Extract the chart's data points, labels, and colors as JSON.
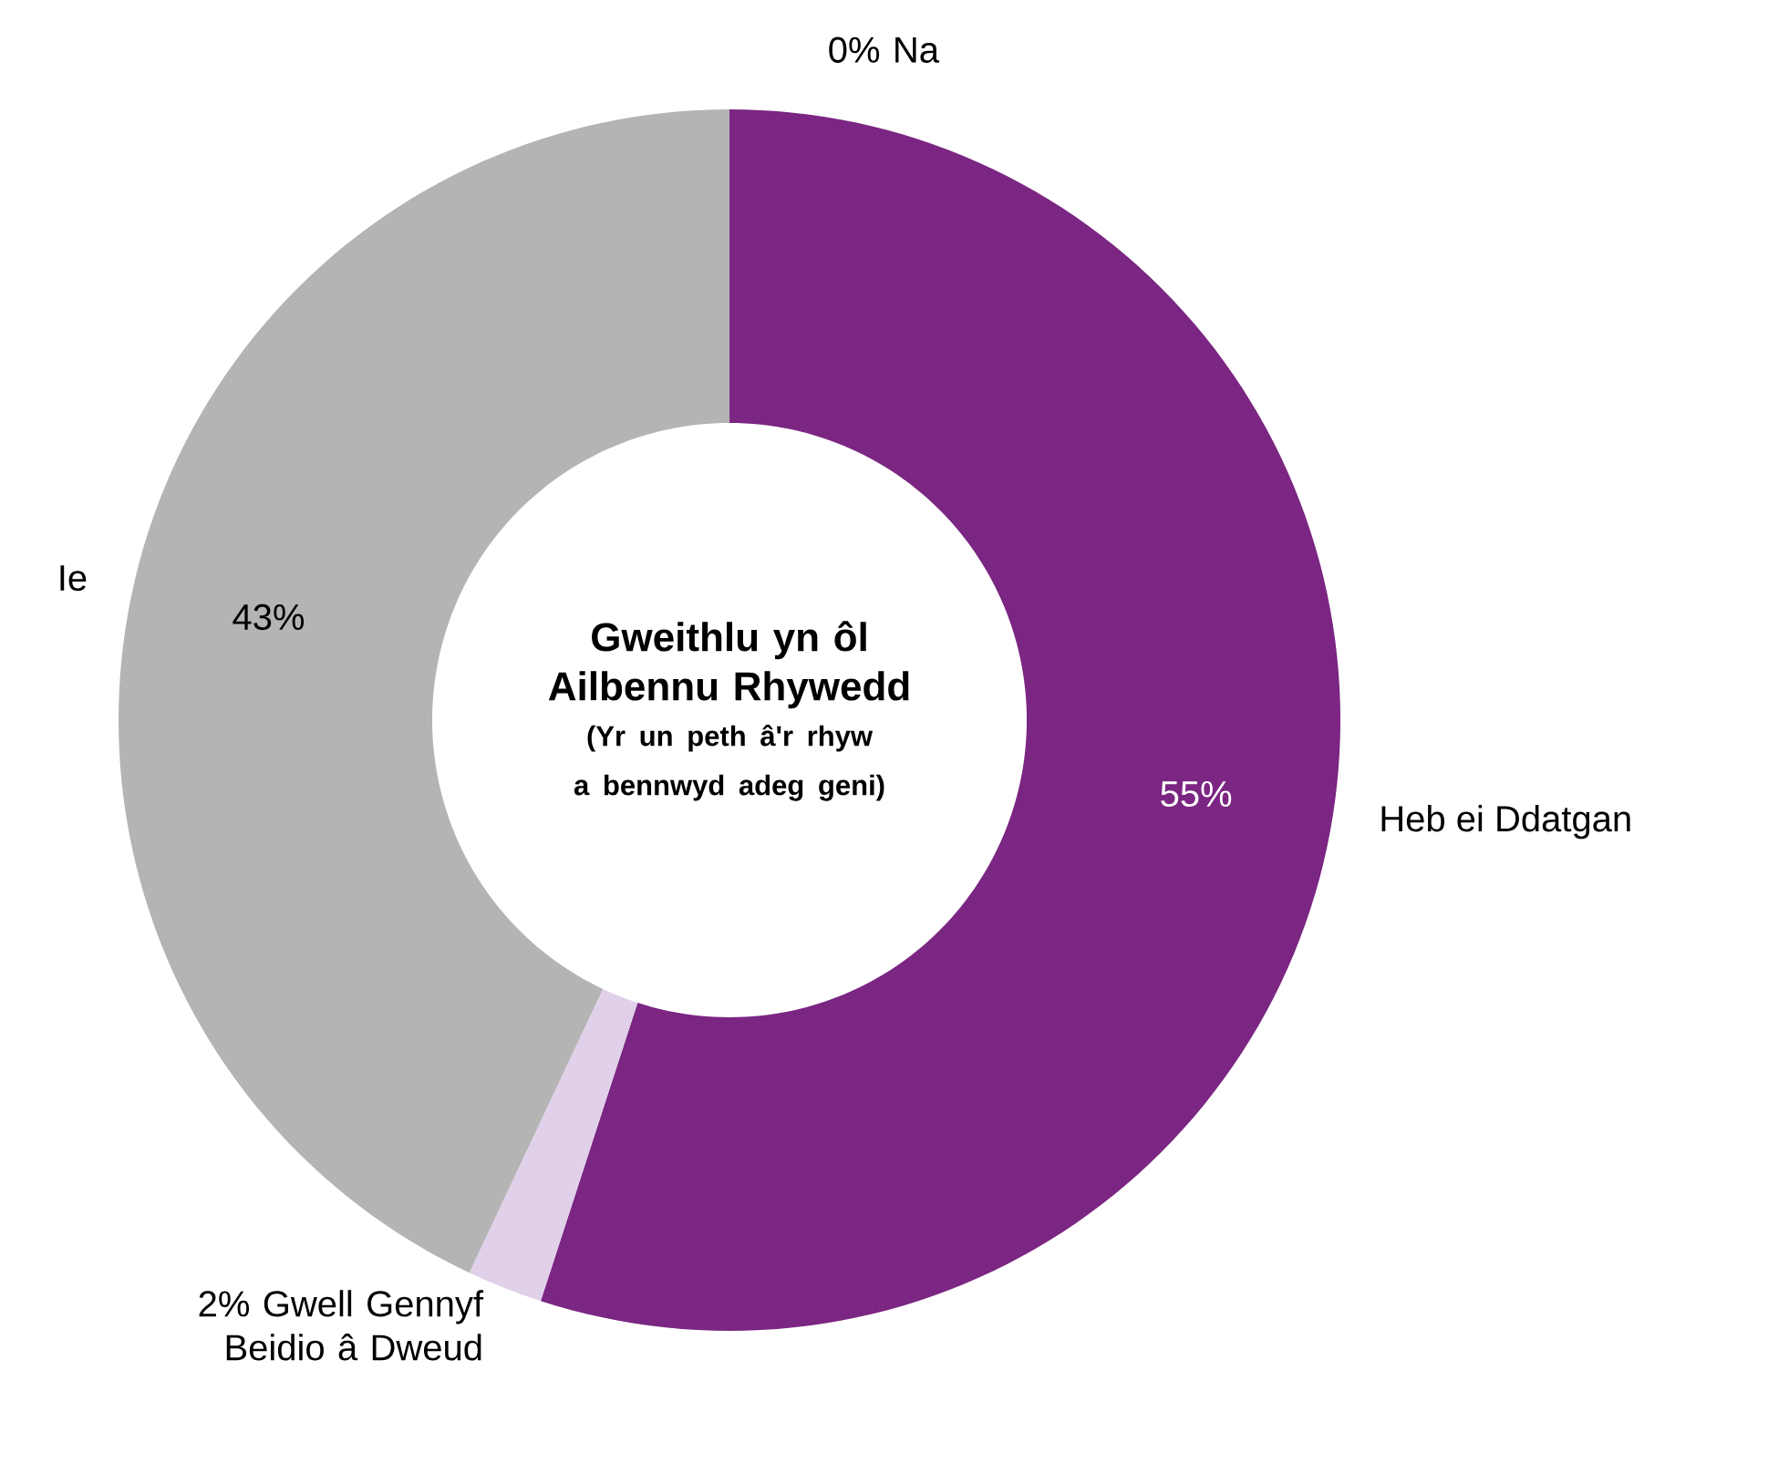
{
  "chart_data": {
    "type": "donut",
    "title": "Gweithlu yn ôl Ailbennu Rhywedd",
    "subtitle": "(Yr un peth â'r rhyw a bennwyd adeg geni)",
    "categories": [
      "Na",
      "Heb ei Ddatgan",
      "Gwell Gennyf Beidio â Dweud",
      "Ie"
    ],
    "values": [
      0,
      55,
      2,
      43
    ],
    "value_labels": [
      "0%",
      "55%",
      "2%",
      "43%"
    ],
    "colors": [
      "#5c2a78",
      "#7b2682",
      "#e0d0ea",
      "#b4b4b4"
    ]
  }
}
